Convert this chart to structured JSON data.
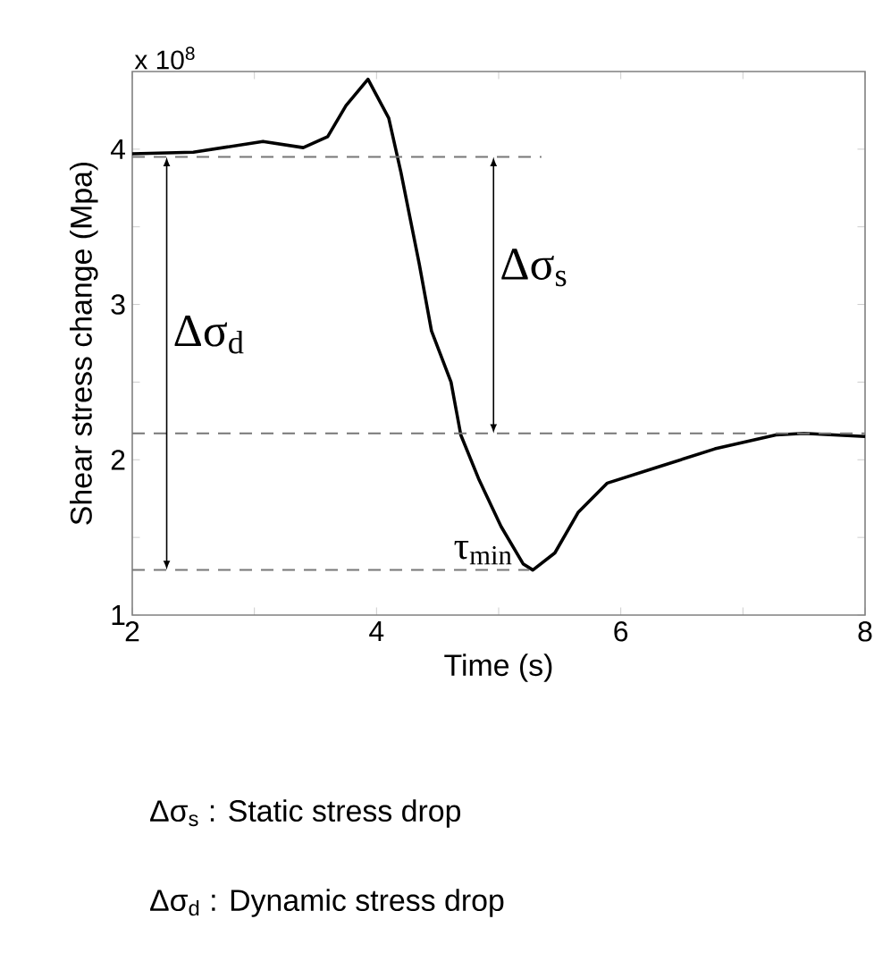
{
  "chart_data": {
    "type": "line",
    "xlabel": "Time (s)",
    "ylabel": "Shear stress change (Mpa)",
    "xlim": [
      2,
      8
    ],
    "ylim": [
      1,
      4.5
    ],
    "xticks": [
      2,
      {
        "value": 3,
        "label": null
      },
      4,
      {
        "value": 5,
        "label": null
      },
      6,
      {
        "value": 7,
        "label": null
      },
      8
    ],
    "yticks": [
      1,
      {
        "value": 1.5,
        "label": null
      },
      2,
      {
        "value": 2.5,
        "label": null
      },
      3,
      {
        "value": 3.5,
        "label": null
      },
      4
    ],
    "grid": false,
    "marker": "none",
    "series": [
      {
        "color": "#000000",
        "line_style": "solid",
        "x": [
          2,
          2.5,
          3.07,
          3.4,
          3.6,
          3.75,
          3.93,
          4.1,
          4.2,
          4.35,
          4.45,
          4.61,
          4.69,
          4.84,
          5.02,
          5.2,
          5.28,
          5.46,
          5.65,
          5.89,
          6.29,
          6.77,
          7.27,
          7.5,
          8
        ],
        "values": [
          3.97,
          3.98,
          4.05,
          4.01,
          4.08,
          4.28,
          4.45,
          4.2,
          3.85,
          3.26,
          2.83,
          2.5,
          2.16,
          1.87,
          1.57,
          1.33,
          1.29,
          1.4,
          1.66,
          1.85,
          1.95,
          2.07,
          2.16,
          2.17,
          2.15
        ]
      },
      {
        "color": "#777777",
        "line_style": "dashed",
        "x": [
          2,
          5.35
        ],
        "values": [
          3.95,
          3.95
        ]
      },
      {
        "color": "#777777",
        "line_style": "dashed",
        "x": [
          2,
          8
        ],
        "values": [
          2.17,
          2.17
        ]
      },
      {
        "color": "#777777",
        "line_style": "dashed",
        "x": [
          2,
          5.25
        ],
        "values": [
          1.29,
          1.29
        ]
      }
    ],
    "annotations": [
      "x 10$^{8}$",
      "Δσ$_{d}$",
      "Δσ$_{s}$",
      {
        "text": "τ$_{min}$",
        "x": 5.28,
        "y": 1.29
      },
      "Δσ$_{s}$ : Static stress drop",
      "Δσ$_{d}$ : Dynamic stress drop"
    ]
  }
}
